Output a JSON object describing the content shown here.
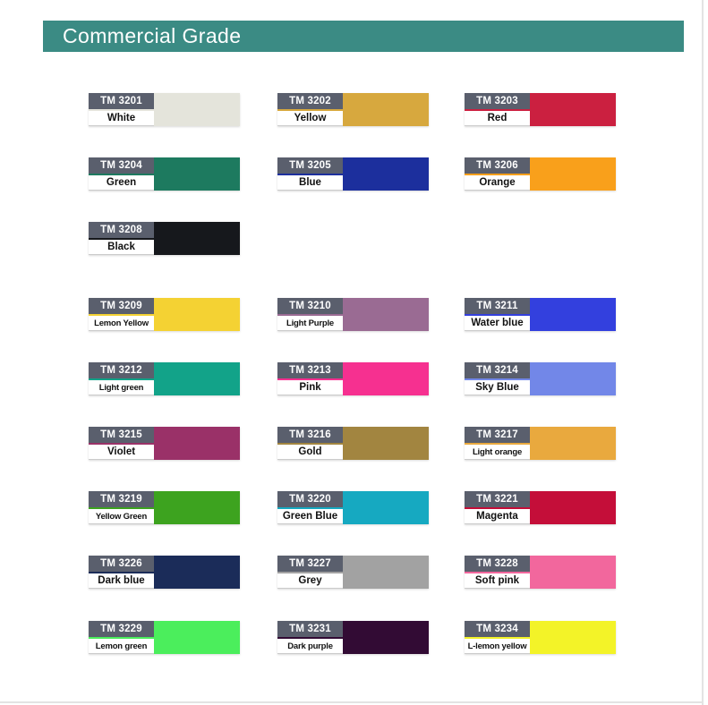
{
  "page": {
    "title_bar": {
      "label": "Commercial Grade",
      "background": "#3b8b84",
      "text_color": "#ffffff"
    },
    "edge_line_color": "#e3e3e3"
  },
  "swatch_table": {
    "label_box_color": "#5a5f6d",
    "swatches": [
      {
        "code": "TM 3201",
        "name": "White",
        "color": "#e4e4db",
        "row": 0,
        "col": 0
      },
      {
        "code": "TM 3202",
        "name": "Yellow",
        "color": "#d7a83e",
        "row": 0,
        "col": 1
      },
      {
        "code": "TM 3203",
        "name": "Red",
        "color": "#cb2040",
        "row": 0,
        "col": 2
      },
      {
        "code": "TM 3204",
        "name": "Green",
        "color": "#1d7a5f",
        "row": 1,
        "col": 0
      },
      {
        "code": "TM 3205",
        "name": "Blue",
        "color": "#1c2f9d",
        "row": 1,
        "col": 1
      },
      {
        "code": "TM 3206",
        "name": "Orange",
        "color": "#f9a01b",
        "row": 1,
        "col": 2
      },
      {
        "code": "TM 3208",
        "name": "Black",
        "color": "#16181c",
        "row": 2,
        "col": 0
      },
      {
        "code": "TM 3209",
        "name": "Lemon Yellow",
        "color": "#f4d233",
        "row": 3,
        "col": 0
      },
      {
        "code": "TM 3210",
        "name": "Light Purple",
        "color": "#9a6b93",
        "row": 3,
        "col": 1
      },
      {
        "code": "TM 3211",
        "name": "Water blue",
        "color": "#3340de",
        "row": 3,
        "col": 2
      },
      {
        "code": "TM 3212",
        "name": "Light green",
        "color": "#12a389",
        "row": 4,
        "col": 0
      },
      {
        "code": "TM 3213",
        "name": "Pink",
        "color": "#f63090",
        "row": 4,
        "col": 1
      },
      {
        "code": "TM 3214",
        "name": "Sky Blue",
        "color": "#7287e8",
        "row": 4,
        "col": 2
      },
      {
        "code": "TM 3215",
        "name": "Violet",
        "color": "#9a3168",
        "row": 5,
        "col": 0
      },
      {
        "code": "TM 3216",
        "name": "Gold",
        "color": "#a28540",
        "row": 5,
        "col": 1
      },
      {
        "code": "TM 3217",
        "name": "Light orange",
        "color": "#e9a93e",
        "row": 5,
        "col": 2
      },
      {
        "code": "TM 3219",
        "name": "Yellow Green",
        "color": "#3da31f",
        "row": 6,
        "col": 0
      },
      {
        "code": "TM 3220",
        "name": "Green Blue",
        "color": "#16a9c1",
        "row": 6,
        "col": 1
      },
      {
        "code": "TM 3221",
        "name": "Magenta",
        "color": "#c40e39",
        "row": 6,
        "col": 2
      },
      {
        "code": "TM 3226",
        "name": "Dark blue",
        "color": "#1b2c59",
        "row": 7,
        "col": 0
      },
      {
        "code": "TM 3227",
        "name": "Grey",
        "color": "#a2a2a2",
        "row": 7,
        "col": 1
      },
      {
        "code": "TM 3228",
        "name": "Soft pink",
        "color": "#f2679d",
        "row": 7,
        "col": 2
      },
      {
        "code": "TM 3229",
        "name": "Lemon green",
        "color": "#4bee5c",
        "row": 8,
        "col": 0
      },
      {
        "code": "TM 3231",
        "name": "Dark purple",
        "color": "#320b34",
        "row": 8,
        "col": 1
      },
      {
        "code": "TM 3234",
        "name": "L-lemon yellow",
        "color": "#f3f328",
        "row": 8,
        "col": 2
      }
    ]
  }
}
